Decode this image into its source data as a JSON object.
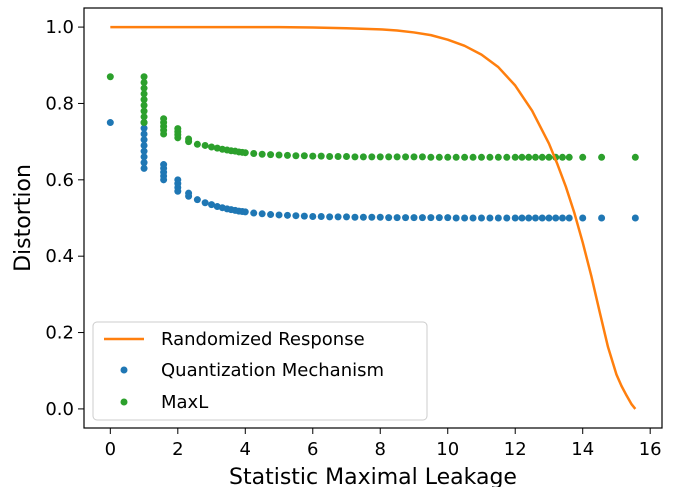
{
  "chart_data": {
    "type": "scatter",
    "title": "",
    "xlabel": "Statistic Maximal Leakage",
    "ylabel": "Distortion",
    "xlim": [
      -0.78,
      16.35
    ],
    "ylim": [
      -0.05,
      1.05
    ],
    "xticks": [
      0,
      2,
      4,
      6,
      8,
      10,
      12,
      14,
      16
    ],
    "yticks": [
      0.0,
      0.2,
      0.4,
      0.6,
      0.8,
      1.0
    ],
    "xtick_labels": [
      "0",
      "2",
      "4",
      "6",
      "8",
      "10",
      "12",
      "14",
      "16"
    ],
    "ytick_labels": [
      "0.0",
      "0.2",
      "0.4",
      "0.6",
      "0.8",
      "1.0"
    ],
    "grid": false,
    "legend_position": "lower-left",
    "series": [
      {
        "name": "Randomized Response",
        "kind": "line",
        "color": "#ff7f0e",
        "x": [
          0,
          1,
          2,
          3,
          4,
          5,
          6,
          7,
          8,
          8.5,
          9,
          9.5,
          10,
          10.5,
          11,
          11.5,
          12,
          12.5,
          13,
          13.25,
          13.5,
          13.75,
          14,
          14.25,
          14.5,
          14.75,
          15,
          15.15,
          15.3,
          15.45,
          15.56
        ],
        "y": [
          1.0,
          1.0,
          1.0,
          1.0,
          1.0,
          1.0,
          0.999,
          0.997,
          0.994,
          0.991,
          0.986,
          0.979,
          0.967,
          0.951,
          0.928,
          0.895,
          0.847,
          0.781,
          0.695,
          0.641,
          0.582,
          0.514,
          0.436,
          0.35,
          0.255,
          0.162,
          0.09,
          0.06,
          0.035,
          0.012,
          0.0
        ]
      },
      {
        "name": "Quantization Mechanism",
        "kind": "scatter",
        "color": "#1f77b4",
        "x": [
          0,
          1,
          1,
          1,
          1,
          1,
          1,
          1,
          1,
          1,
          1.58,
          1.58,
          1.58,
          1.58,
          1.58,
          2,
          2,
          2,
          2,
          2.32,
          2.32,
          2.58,
          2.81,
          3,
          3.17,
          3.32,
          3.46,
          3.58,
          3.7,
          3.81,
          3.91,
          4,
          4.25,
          4.5,
          4.75,
          5,
          5.25,
          5.5,
          5.75,
          6,
          6.25,
          6.5,
          6.75,
          7,
          7.25,
          7.5,
          7.75,
          8,
          8.25,
          8.5,
          8.75,
          9,
          9.25,
          9.5,
          9.75,
          10,
          10.25,
          10.5,
          10.75,
          11,
          11.25,
          11.5,
          11.75,
          12,
          12.2,
          12.4,
          12.6,
          12.8,
          13,
          13.2,
          13.4,
          13.6,
          14,
          14.56,
          15.56
        ],
        "y": [
          0.75,
          0.63,
          0.645,
          0.66,
          0.675,
          0.69,
          0.705,
          0.72,
          0.735,
          0.75,
          0.6,
          0.61,
          0.62,
          0.63,
          0.64,
          0.57,
          0.58,
          0.59,
          0.6,
          0.557,
          0.565,
          0.548,
          0.54,
          0.535,
          0.53,
          0.527,
          0.524,
          0.522,
          0.52,
          0.518,
          0.517,
          0.516,
          0.513,
          0.511,
          0.509,
          0.508,
          0.507,
          0.506,
          0.505,
          0.504,
          0.504,
          0.503,
          0.503,
          0.503,
          0.502,
          0.502,
          0.502,
          0.502,
          0.501,
          0.501,
          0.501,
          0.501,
          0.501,
          0.501,
          0.501,
          0.501,
          0.5,
          0.5,
          0.5,
          0.5,
          0.5,
          0.5,
          0.5,
          0.5,
          0.5,
          0.5,
          0.5,
          0.5,
          0.5,
          0.5,
          0.5,
          0.5,
          0.5,
          0.5,
          0.5
        ]
      },
      {
        "name": "MaxL",
        "kind": "scatter",
        "color": "#2ca02c",
        "x": [
          0,
          1,
          1,
          1,
          1,
          1,
          1,
          1,
          1,
          1,
          1.58,
          1.58,
          1.58,
          1.58,
          1.58,
          2,
          2,
          2,
          2,
          2.32,
          2.32,
          2.58,
          2.81,
          3,
          3.17,
          3.32,
          3.46,
          3.58,
          3.7,
          3.81,
          3.91,
          4,
          4.25,
          4.5,
          4.75,
          5,
          5.25,
          5.5,
          5.75,
          6,
          6.25,
          6.5,
          6.75,
          7,
          7.25,
          7.5,
          7.75,
          8,
          8.25,
          8.5,
          8.75,
          9,
          9.25,
          9.5,
          9.75,
          10,
          10.25,
          10.5,
          10.75,
          11,
          11.25,
          11.5,
          11.75,
          12,
          12.2,
          12.4,
          12.6,
          12.8,
          13,
          13.2,
          13.4,
          13.6,
          14,
          14.56,
          15.56
        ],
        "y": [
          0.87,
          0.75,
          0.765,
          0.78,
          0.795,
          0.81,
          0.825,
          0.84,
          0.855,
          0.87,
          0.72,
          0.73,
          0.74,
          0.75,
          0.76,
          0.71,
          0.718,
          0.726,
          0.734,
          0.7,
          0.707,
          0.693,
          0.69,
          0.686,
          0.683,
          0.68,
          0.678,
          0.676,
          0.675,
          0.673,
          0.672,
          0.671,
          0.669,
          0.667,
          0.666,
          0.665,
          0.664,
          0.663,
          0.663,
          0.662,
          0.662,
          0.661,
          0.661,
          0.661,
          0.66,
          0.66,
          0.66,
          0.66,
          0.66,
          0.66,
          0.66,
          0.66,
          0.66,
          0.659,
          0.659,
          0.659,
          0.659,
          0.659,
          0.659,
          0.659,
          0.659,
          0.659,
          0.659,
          0.659,
          0.659,
          0.659,
          0.659,
          0.659,
          0.659,
          0.659,
          0.659,
          0.659,
          0.659,
          0.659,
          0.659
        ]
      }
    ]
  }
}
